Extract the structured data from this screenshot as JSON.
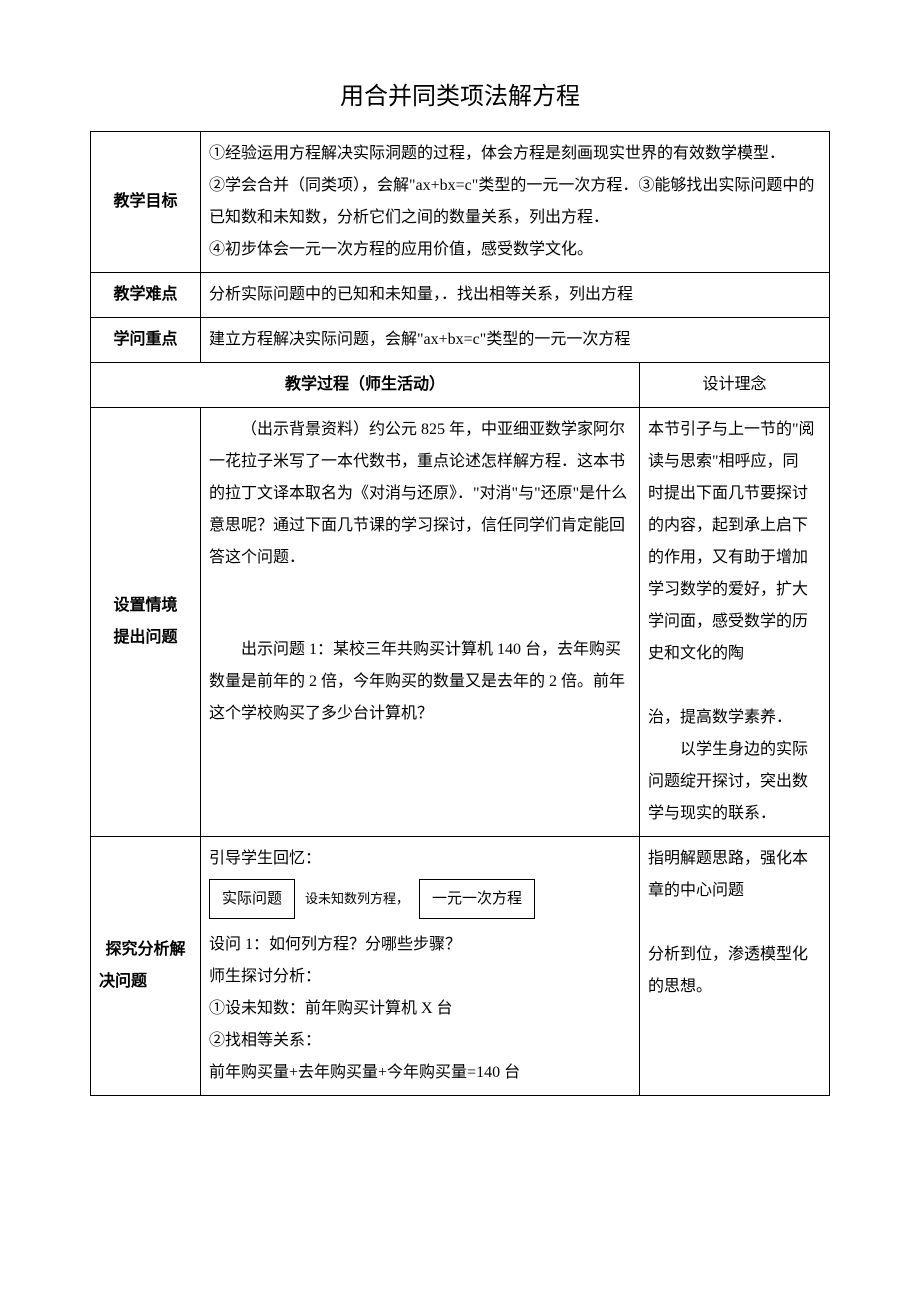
{
  "title": "用合并同类项法解方程",
  "rows": {
    "goal_label": "教学目标",
    "goal_text": "①经验运用方程解决实际洞题的过程，体会方程是刻画现实世界的有效数学模型．\n②学会合并（同类项），会解\"ax+bx=c\"类型的一元一次方程．③能够找出实际问题中的已知数和未知数，分析它们之间的数量关系，列出方程．\n④初步体会一元一次方程的应用价值，感受数学文化。",
    "difficulty_label": "教学难点",
    "difficulty_text": "分析实际问题中的已知和未知量，．找出相等关系，列出方程",
    "keypoint_label": "学问重点",
    "keypoint_text": "建立方程解决实际问题，会解\"ax+bx=c\"类型的一元一次方程",
    "process_header": "教学过程（师生活动）",
    "design_header": "设计理念",
    "section1_label_a": "设置情境",
    "section1_label_b": "提出问题",
    "section1_body_p1": "（出示背景资料）约公元 825 年，中亚细亚数学家阿尔一花拉子米写了一本代数书，重点论述怎样解方程．这本书的拉丁文译本取名为《对消与还原》．\"对消\"与\"还原\"是什么意思呢？通过下面几节课的学习探讨，信任同学们肯定能回答这个问题．",
    "section1_body_p2": "出示问题 1：某校三年共购买计算机 140 台，去年购买数量是前年的 2 倍，今年购买的数量又是去年的 2 倍。前年这个学校购买了多少台计算机？",
    "section1_right": "本节引子与上一节的\"阅读与思索\"相呼应，同\n时提出下面几节要探讨的内容，起到承上启下的作用，又有助于增加学习数学的爱好，扩大学问面，感受数学的历史和文化的陶\n\n治，提高数学素养．\n　　以学生身边的实际问题绽开探讨，突出数学与现实的联系．",
    "section2_label_a": "探究分析解",
    "section2_label_b": "决问题",
    "section2_intro": "引导学生回忆：",
    "flow_box1": "实际问题",
    "flow_arrow": "设未知数列方程，",
    "flow_box2": "一元一次方程",
    "section2_q1": "设问 1：如何列方程？分哪些步骤？",
    "section2_line2": "师生探讨分析：",
    "section2_line3": "①设未知数：前年购买计算机 X 台",
    "section2_line4": "②找相等关系：",
    "section2_line5": "前年购买量+去年购买量+今年购买量=140 台",
    "section2_right": "指明解题思路，强化本章的中心问题\n\n分析到位，渗透模型化的思想。"
  }
}
